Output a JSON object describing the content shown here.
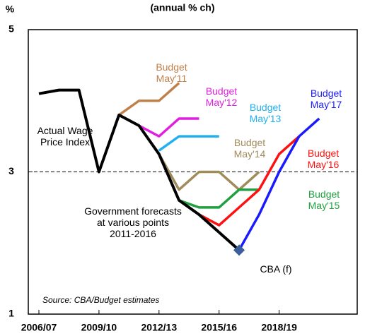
{
  "chart_data": {
    "type": "line",
    "title": "(annual % ch)",
    "y_unit": "%",
    "xlim": [
      2006.47,
      2022.9
    ],
    "ylim": [
      1,
      5
    ],
    "xticks": [
      {
        "value": 2007,
        "label": "2006/07"
      },
      {
        "value": 2010,
        "label": "2009/10"
      },
      {
        "value": 2013,
        "label": "2012/13"
      },
      {
        "value": 2016,
        "label": "2015/16"
      },
      {
        "value": 2019,
        "label": "2018/19"
      }
    ],
    "yticks": [
      1,
      3,
      5
    ],
    "reference_line": 3,
    "series": [
      {
        "name": "Actual Wage Price Index",
        "color": "#000000",
        "x": [
          2007,
          2008,
          2009,
          2010,
          2011,
          2012,
          2013,
          2014,
          2015,
          2016
        ],
        "values": [
          4.1,
          4.15,
          4.15,
          3.0,
          3.8,
          3.65,
          3.25,
          2.6,
          2.4,
          2.15
        ]
      },
      {
        "name": "CBA (f)",
        "color": "#000000",
        "x": [
          2016,
          2017
        ],
        "values": [
          2.15,
          1.9
        ]
      },
      {
        "name": "Budget May'11",
        "color": "#c0804a",
        "x": [
          2011,
          2012,
          2013,
          2014
        ],
        "values": [
          3.8,
          4.0,
          4.0,
          4.25
        ]
      },
      {
        "name": "Budget May'12",
        "color": "#e020e0",
        "x": [
          2012,
          2013,
          2014,
          2015
        ],
        "values": [
          3.65,
          3.5,
          3.75,
          3.75
        ]
      },
      {
        "name": "Budget May'13",
        "color": "#20b0f0",
        "x": [
          2013,
          2014,
          2015,
          2016
        ],
        "values": [
          3.3,
          3.5,
          3.5,
          3.5
        ]
      },
      {
        "name": "Budget May'14",
        "color": "#a08c5a",
        "x": [
          2013,
          2014,
          2015,
          2016,
          2017,
          2018
        ],
        "values": [
          3.25,
          2.75,
          3.0,
          3.0,
          2.75,
          3.0
        ]
      },
      {
        "name": "Budget May'15",
        "color": "#20a040",
        "x": [
          2014,
          2015,
          2016,
          2017,
          2018
        ],
        "values": [
          2.6,
          2.5,
          2.5,
          2.75,
          2.75
        ]
      },
      {
        "name": "Budget May'16",
        "color": "#ff1010",
        "x": [
          2015,
          2016,
          2017,
          2018,
          2019,
          2020
        ],
        "values": [
          2.4,
          2.25,
          2.5,
          2.75,
          3.25,
          3.5
        ]
      },
      {
        "name": "Budget May'17",
        "color": "#1a1aff",
        "x": [
          2017,
          2018,
          2019,
          2020,
          2021
        ],
        "values": [
          1.9,
          2.4,
          3.0,
          3.5,
          3.75
        ]
      }
    ],
    "annotations": [
      "Government forecasts at various points 2011-2016",
      "Source: CBA/Budget estimates"
    ]
  }
}
